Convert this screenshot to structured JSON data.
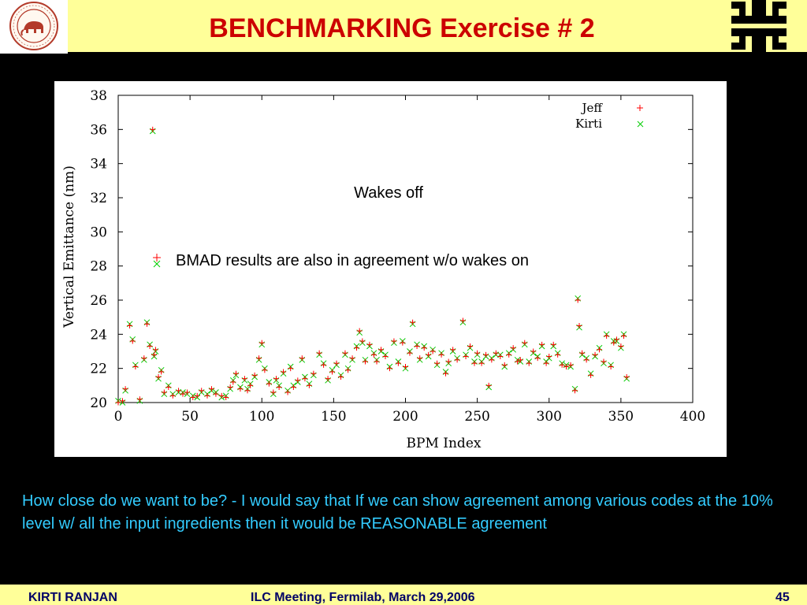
{
  "slide": {
    "title": "BENCHMARKING Exercise # 2",
    "seal_icon": "university-seal-icon",
    "logo_icon": "fermilab-logo-icon",
    "comment": "How close do we want to be? -  I would say that If we can show agreement among various codes at the 10% level w/ all the input ingredients then it would be REASONABLE agreement",
    "footer": {
      "author": "KIRTI  RANJAN",
      "event": "ILC Meeting, Fermilab, March 29,2006",
      "page": "45"
    }
  },
  "colors": {
    "header_bg": "#ffff99",
    "title": "#cc0000",
    "comment_text": "#33ccff",
    "footer_text": "#000066",
    "jeff_marker": "#ff0000",
    "kirti_marker": "#00cc00"
  },
  "chart_data": {
    "type": "scatter",
    "title": "",
    "xlabel": "BPM Index",
    "ylabel": "Vertical Emittance (nm)",
    "xlim": [
      0,
      400
    ],
    "ylim": [
      20,
      38
    ],
    "xticks": [
      0,
      50,
      100,
      150,
      200,
      250,
      300,
      350,
      400
    ],
    "yticks": [
      20,
      22,
      24,
      26,
      28,
      30,
      32,
      34,
      36,
      38
    ],
    "grid": false,
    "legend_position": "top-right",
    "annotations": [
      "Wakes off",
      "BMAD results are also in agreement w/o wakes on"
    ],
    "series": [
      {
        "name": "Jeff",
        "marker": "plus",
        "points": [
          [
            0,
            20.0
          ],
          [
            3,
            20.1
          ],
          [
            5,
            20.8
          ],
          [
            8,
            24.5
          ],
          [
            10,
            23.6
          ],
          [
            12,
            22.1
          ],
          [
            15,
            20.2
          ],
          [
            18,
            22.6
          ],
          [
            20,
            24.6
          ],
          [
            22,
            23.3
          ],
          [
            24,
            36.0
          ],
          [
            25,
            22.8
          ],
          [
            26,
            23.1
          ],
          [
            28,
            21.5
          ],
          [
            30,
            21.8
          ],
          [
            32,
            20.6
          ],
          [
            35,
            20.9
          ],
          [
            38,
            20.4
          ],
          [
            42,
            20.7
          ],
          [
            45,
            20.5
          ],
          [
            48,
            20.6
          ],
          [
            52,
            20.3
          ],
          [
            55,
            20.4
          ],
          [
            58,
            20.7
          ],
          [
            62,
            20.4
          ],
          [
            65,
            20.8
          ],
          [
            68,
            20.5
          ],
          [
            72,
            20.4
          ],
          [
            75,
            20.3
          ],
          [
            78,
            20.9
          ],
          [
            80,
            21.2
          ],
          [
            82,
            21.7
          ],
          [
            85,
            20.8
          ],
          [
            88,
            21.4
          ],
          [
            90,
            20.7
          ],
          [
            92,
            21.0
          ],
          [
            95,
            21.6
          ],
          [
            98,
            22.6
          ],
          [
            100,
            23.5
          ],
          [
            102,
            21.9
          ],
          [
            105,
            21.1
          ],
          [
            108,
            20.6
          ],
          [
            110,
            21.4
          ],
          [
            112,
            20.9
          ],
          [
            115,
            21.8
          ],
          [
            118,
            20.6
          ],
          [
            120,
            22.0
          ],
          [
            122,
            20.9
          ],
          [
            125,
            21.3
          ],
          [
            128,
            22.6
          ],
          [
            130,
            21.4
          ],
          [
            133,
            21.0
          ],
          [
            136,
            21.7
          ],
          [
            140,
            22.9
          ],
          [
            143,
            22.2
          ],
          [
            146,
            21.4
          ],
          [
            149,
            21.8
          ],
          [
            152,
            22.3
          ],
          [
            155,
            21.5
          ],
          [
            158,
            22.9
          ],
          [
            160,
            21.9
          ],
          [
            163,
            22.6
          ],
          [
            166,
            23.2
          ],
          [
            168,
            24.2
          ],
          [
            170,
            23.6
          ],
          [
            172,
            22.4
          ],
          [
            175,
            23.4
          ],
          [
            178,
            22.8
          ],
          [
            180,
            22.4
          ],
          [
            183,
            23.1
          ],
          [
            186,
            22.7
          ],
          [
            189,
            22.0
          ],
          [
            192,
            23.6
          ],
          [
            195,
            22.3
          ],
          [
            198,
            23.5
          ],
          [
            200,
            22.1
          ],
          [
            203,
            22.9
          ],
          [
            205,
            24.7
          ],
          [
            208,
            23.3
          ],
          [
            210,
            22.6
          ],
          [
            213,
            23.2
          ],
          [
            216,
            22.8
          ],
          [
            219,
            23.0
          ],
          [
            222,
            22.3
          ],
          [
            225,
            22.8
          ],
          [
            228,
            21.7
          ],
          [
            230,
            22.4
          ],
          [
            233,
            23.1
          ],
          [
            236,
            22.5
          ],
          [
            240,
            24.8
          ],
          [
            242,
            22.7
          ],
          [
            245,
            23.3
          ],
          [
            248,
            22.3
          ],
          [
            250,
            22.9
          ],
          [
            253,
            22.3
          ],
          [
            256,
            22.8
          ],
          [
            258,
            21.0
          ],
          [
            260,
            22.5
          ],
          [
            263,
            22.9
          ],
          [
            266,
            22.7
          ],
          [
            269,
            22.2
          ],
          [
            272,
            22.8
          ],
          [
            275,
            23.2
          ],
          [
            278,
            22.4
          ],
          [
            280,
            22.5
          ],
          [
            283,
            23.5
          ],
          [
            286,
            22.3
          ],
          [
            289,
            23.0
          ],
          [
            292,
            22.6
          ],
          [
            295,
            23.4
          ],
          [
            298,
            22.3
          ],
          [
            300,
            22.7
          ],
          [
            303,
            23.4
          ],
          [
            306,
            22.8
          ],
          [
            309,
            22.2
          ],
          [
            312,
            22.1
          ],
          [
            315,
            22.2
          ],
          [
            318,
            20.7
          ],
          [
            320,
            26.0
          ],
          [
            321,
            24.5
          ],
          [
            323,
            22.9
          ],
          [
            326,
            22.5
          ],
          [
            329,
            21.6
          ],
          [
            332,
            22.8
          ],
          [
            335,
            23.1
          ],
          [
            338,
            22.4
          ],
          [
            340,
            23.9
          ],
          [
            343,
            22.1
          ],
          [
            345,
            23.5
          ],
          [
            347,
            23.7
          ],
          [
            350,
            23.3
          ],
          [
            352,
            23.9
          ],
          [
            354,
            21.5
          ]
        ]
      },
      {
        "name": "Kirti",
        "marker": "cross",
        "points": [
          [
            0,
            20.1
          ],
          [
            3,
            20.0
          ],
          [
            5,
            20.7
          ],
          [
            8,
            24.6
          ],
          [
            10,
            23.7
          ],
          [
            12,
            22.2
          ],
          [
            15,
            20.1
          ],
          [
            18,
            22.5
          ],
          [
            20,
            24.7
          ],
          [
            22,
            23.4
          ],
          [
            24,
            35.9
          ],
          [
            25,
            22.7
          ],
          [
            26,
            23.0
          ],
          [
            28,
            21.4
          ],
          [
            30,
            21.9
          ],
          [
            32,
            20.5
          ],
          [
            35,
            21.0
          ],
          [
            38,
            20.5
          ],
          [
            42,
            20.6
          ],
          [
            45,
            20.6
          ],
          [
            48,
            20.5
          ],
          [
            52,
            20.4
          ],
          [
            55,
            20.3
          ],
          [
            58,
            20.6
          ],
          [
            62,
            20.5
          ],
          [
            65,
            20.7
          ],
          [
            68,
            20.6
          ],
          [
            72,
            20.3
          ],
          [
            75,
            20.4
          ],
          [
            78,
            20.8
          ],
          [
            80,
            21.3
          ],
          [
            82,
            21.6
          ],
          [
            85,
            20.9
          ],
          [
            88,
            21.3
          ],
          [
            90,
            20.8
          ],
          [
            92,
            21.1
          ],
          [
            95,
            21.5
          ],
          [
            98,
            22.5
          ],
          [
            100,
            23.4
          ],
          [
            102,
            22.0
          ],
          [
            105,
            21.2
          ],
          [
            108,
            20.5
          ],
          [
            110,
            21.3
          ],
          [
            112,
            21.0
          ],
          [
            115,
            21.7
          ],
          [
            118,
            20.7
          ],
          [
            120,
            22.1
          ],
          [
            122,
            21.0
          ],
          [
            125,
            21.2
          ],
          [
            128,
            22.5
          ],
          [
            130,
            21.5
          ],
          [
            133,
            21.1
          ],
          [
            136,
            21.6
          ],
          [
            140,
            22.8
          ],
          [
            143,
            22.3
          ],
          [
            146,
            21.3
          ],
          [
            149,
            21.9
          ],
          [
            152,
            22.2
          ],
          [
            155,
            21.6
          ],
          [
            158,
            22.8
          ],
          [
            160,
            22.0
          ],
          [
            163,
            22.5
          ],
          [
            166,
            23.3
          ],
          [
            168,
            24.1
          ],
          [
            170,
            23.5
          ],
          [
            172,
            22.5
          ],
          [
            175,
            23.3
          ],
          [
            178,
            22.9
          ],
          [
            180,
            22.5
          ],
          [
            183,
            23.0
          ],
          [
            186,
            22.8
          ],
          [
            189,
            22.1
          ],
          [
            192,
            23.5
          ],
          [
            195,
            22.4
          ],
          [
            198,
            23.6
          ],
          [
            200,
            22.0
          ],
          [
            203,
            23.0
          ],
          [
            205,
            24.6
          ],
          [
            208,
            23.4
          ],
          [
            210,
            22.5
          ],
          [
            213,
            23.3
          ],
          [
            216,
            22.7
          ],
          [
            219,
            23.1
          ],
          [
            222,
            22.2
          ],
          [
            225,
            22.9
          ],
          [
            228,
            21.8
          ],
          [
            230,
            22.3
          ],
          [
            233,
            23.0
          ],
          [
            236,
            22.6
          ],
          [
            240,
            24.7
          ],
          [
            242,
            22.8
          ],
          [
            245,
            23.2
          ],
          [
            248,
            22.4
          ],
          [
            250,
            22.8
          ],
          [
            253,
            22.4
          ],
          [
            256,
            22.7
          ],
          [
            258,
            20.9
          ],
          [
            260,
            22.6
          ],
          [
            263,
            22.8
          ],
          [
            266,
            22.8
          ],
          [
            269,
            22.1
          ],
          [
            272,
            22.9
          ],
          [
            275,
            23.1
          ],
          [
            278,
            22.5
          ],
          [
            280,
            22.4
          ],
          [
            283,
            23.4
          ],
          [
            286,
            22.4
          ],
          [
            289,
            22.9
          ],
          [
            292,
            22.7
          ],
          [
            295,
            23.3
          ],
          [
            298,
            22.4
          ],
          [
            300,
            22.6
          ],
          [
            303,
            23.3
          ],
          [
            306,
            22.9
          ],
          [
            309,
            22.3
          ],
          [
            312,
            22.2
          ],
          [
            315,
            22.1
          ],
          [
            318,
            20.8
          ],
          [
            320,
            26.1
          ],
          [
            321,
            24.4
          ],
          [
            323,
            22.8
          ],
          [
            326,
            22.6
          ],
          [
            329,
            21.7
          ],
          [
            332,
            22.7
          ],
          [
            335,
            23.2
          ],
          [
            338,
            22.3
          ],
          [
            340,
            24.0
          ],
          [
            343,
            22.2
          ],
          [
            345,
            23.6
          ],
          [
            347,
            23.6
          ],
          [
            350,
            23.2
          ],
          [
            352,
            24.0
          ],
          [
            354,
            21.4
          ]
        ]
      }
    ]
  }
}
